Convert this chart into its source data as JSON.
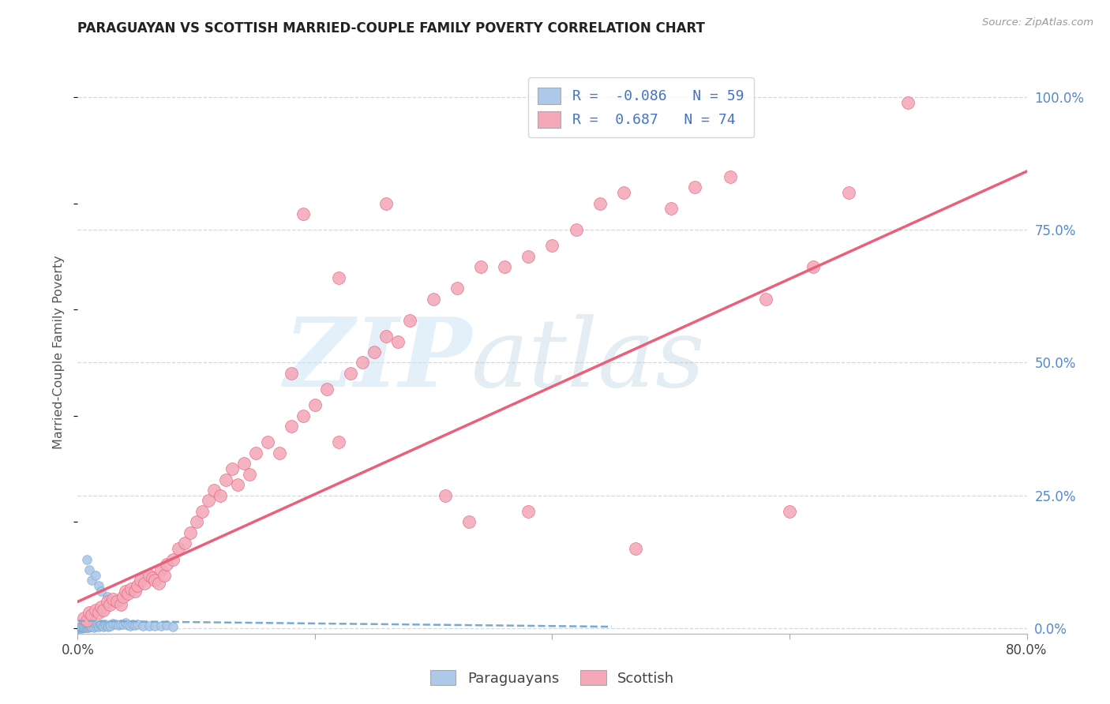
{
  "title": "PARAGUAYAN VS SCOTTISH MARRIED-COUPLE FAMILY POVERTY CORRELATION CHART",
  "source": "Source: ZipAtlas.com",
  "ylabel": "Married-Couple Family Poverty",
  "xmin": 0.0,
  "xmax": 0.8,
  "ymin": -0.01,
  "ymax": 1.05,
  "xticks": [
    0.0,
    0.2,
    0.4,
    0.6,
    0.8
  ],
  "xticklabels": [
    "0.0%",
    "",
    "",
    "",
    "80.0%"
  ],
  "yticks_right": [
    0.0,
    0.25,
    0.5,
    0.75,
    1.0
  ],
  "yticklabels_right": [
    "0.0%",
    "25.0%",
    "50.0%",
    "75.0%",
    "100.0%"
  ],
  "paraguayan_color": "#adc8e8",
  "scottish_color": "#f4a8b8",
  "paraguayan_R": -0.086,
  "paraguayan_N": 59,
  "scottish_R": 0.687,
  "scottish_N": 74,
  "legend_color": "#4472c4",
  "paraguayan_line_color": "#7aaad0",
  "scottish_line_color": "#e8607a",
  "background_color": "#ffffff",
  "grid_color": "#d0d8e0",
  "para_x": [
    0.0,
    0.0,
    0.001,
    0.001,
    0.002,
    0.002,
    0.003,
    0.003,
    0.004,
    0.004,
    0.005,
    0.005,
    0.006,
    0.006,
    0.007,
    0.007,
    0.008,
    0.008,
    0.009,
    0.009,
    0.01,
    0.01,
    0.01,
    0.011,
    0.012,
    0.013,
    0.014,
    0.015,
    0.016,
    0.017,
    0.018,
    0.019,
    0.02,
    0.02,
    0.021,
    0.022,
    0.023,
    0.024,
    0.025,
    0.026,
    0.027,
    0.028,
    0.03,
    0.032,
    0.034,
    0.036,
    0.038,
    0.04,
    0.042,
    0.044,
    0.046,
    0.048,
    0.05,
    0.055,
    0.06,
    0.065,
    0.07,
    0.075,
    0.08
  ],
  "para_y": [
    0.0,
    0.001,
    0.0,
    0.002,
    0.001,
    0.003,
    0.0,
    0.002,
    0.001,
    0.003,
    0.002,
    0.004,
    0.001,
    0.003,
    0.002,
    0.005,
    0.001,
    0.004,
    0.002,
    0.006,
    0.003,
    0.005,
    0.007,
    0.004,
    0.003,
    0.006,
    0.002,
    0.005,
    0.007,
    0.004,
    0.003,
    0.006,
    0.005,
    0.008,
    0.004,
    0.003,
    0.007,
    0.005,
    0.004,
    0.003,
    0.006,
    0.005,
    0.009,
    0.007,
    0.006,
    0.008,
    0.007,
    0.01,
    0.006,
    0.005,
    0.007,
    0.006,
    0.007,
    0.005,
    0.004,
    0.005,
    0.004,
    0.006,
    0.003
  ],
  "para_outlier_x": [
    0.008,
    0.01,
    0.012,
    0.015,
    0.018,
    0.02,
    0.025
  ],
  "para_outlier_y": [
    0.13,
    0.11,
    0.09,
    0.1,
    0.08,
    0.07,
    0.06
  ],
  "scot_x": [
    0.005,
    0.008,
    0.01,
    0.012,
    0.015,
    0.018,
    0.02,
    0.022,
    0.025,
    0.027,
    0.03,
    0.033,
    0.036,
    0.038,
    0.04,
    0.042,
    0.045,
    0.048,
    0.05,
    0.053,
    0.056,
    0.06,
    0.063,
    0.065,
    0.068,
    0.07,
    0.073,
    0.075,
    0.08,
    0.085,
    0.09,
    0.095,
    0.1,
    0.105,
    0.11,
    0.115,
    0.12,
    0.125,
    0.13,
    0.135,
    0.14,
    0.145,
    0.15,
    0.16,
    0.17,
    0.18,
    0.19,
    0.2,
    0.21,
    0.22,
    0.23,
    0.24,
    0.25,
    0.26,
    0.27,
    0.28,
    0.3,
    0.32,
    0.34,
    0.36,
    0.38,
    0.4,
    0.42,
    0.44,
    0.46,
    0.5,
    0.52,
    0.55,
    0.58,
    0.62,
    0.65,
    0.7,
    0.33,
    0.18
  ],
  "scot_y": [
    0.02,
    0.015,
    0.03,
    0.025,
    0.035,
    0.03,
    0.04,
    0.035,
    0.05,
    0.045,
    0.055,
    0.05,
    0.045,
    0.06,
    0.07,
    0.065,
    0.075,
    0.07,
    0.08,
    0.09,
    0.085,
    0.1,
    0.095,
    0.09,
    0.085,
    0.11,
    0.1,
    0.12,
    0.13,
    0.15,
    0.16,
    0.18,
    0.2,
    0.22,
    0.24,
    0.26,
    0.25,
    0.28,
    0.3,
    0.27,
    0.31,
    0.29,
    0.33,
    0.35,
    0.33,
    0.38,
    0.4,
    0.42,
    0.45,
    0.35,
    0.48,
    0.5,
    0.52,
    0.55,
    0.54,
    0.58,
    0.62,
    0.64,
    0.68,
    0.68,
    0.7,
    0.72,
    0.75,
    0.8,
    0.82,
    0.79,
    0.83,
    0.85,
    0.62,
    0.68,
    0.82,
    0.99,
    0.2,
    0.48
  ],
  "scot_outlier_x": [
    0.26,
    0.22,
    0.19,
    0.31,
    0.38,
    0.47,
    0.6
  ],
  "scot_outlier_y": [
    0.8,
    0.66,
    0.78,
    0.25,
    0.22,
    0.15,
    0.22
  ],
  "scottish_line_x0": 0.0,
  "scottish_line_y0": 0.05,
  "scottish_line_x1": 0.8,
  "scottish_line_y1": 0.86,
  "para_line_x0": 0.0,
  "para_line_y0": 0.014,
  "para_line_x1": 0.45,
  "para_line_y1": 0.003
}
